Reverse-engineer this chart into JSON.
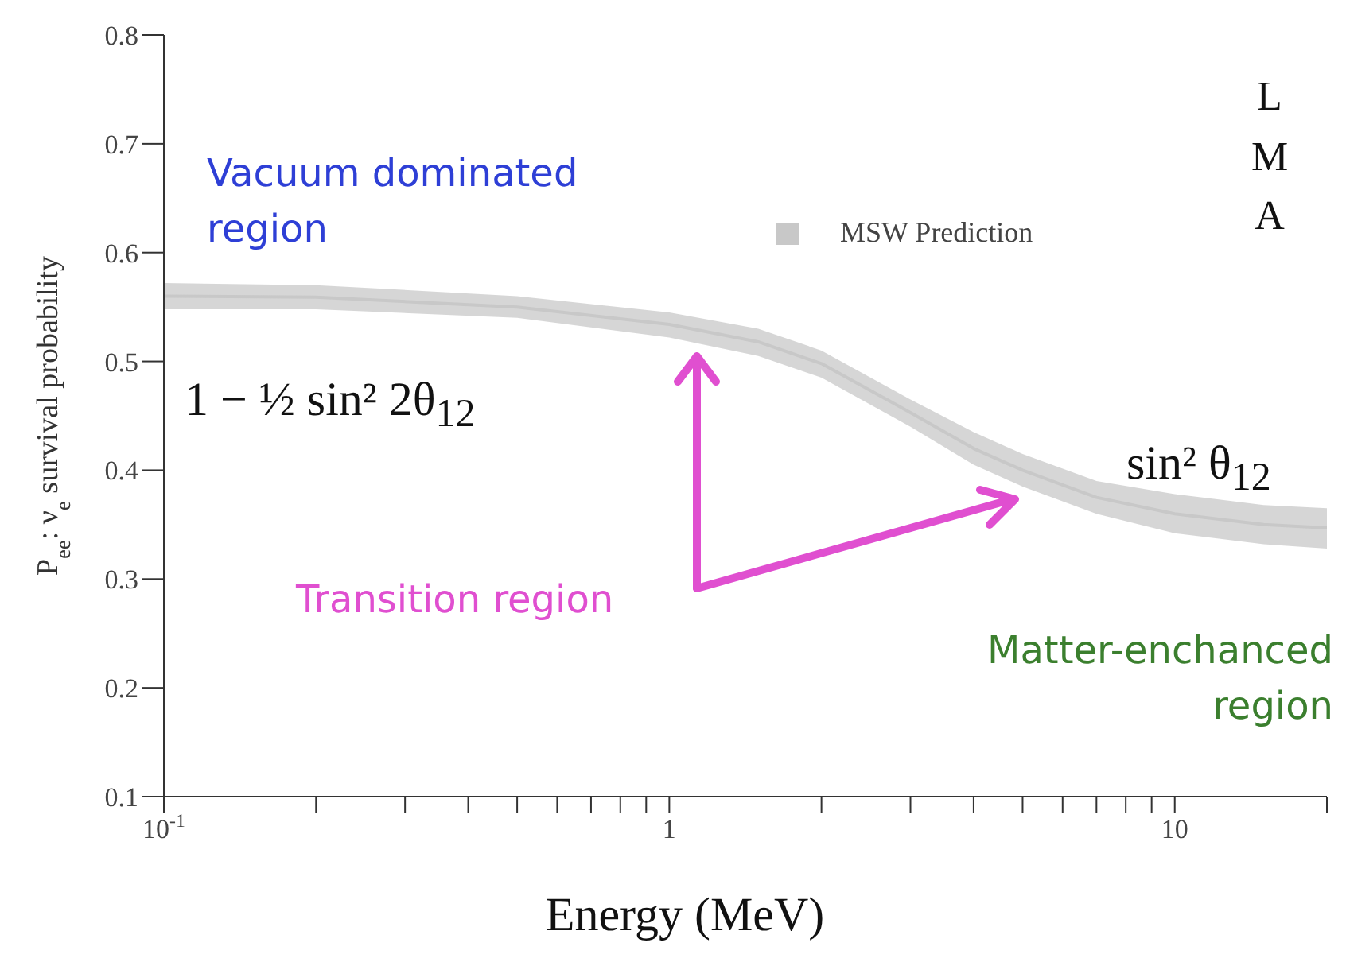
{
  "chart_data": {
    "type": "line",
    "xlabel": "Energy (MeV)",
    "ylabel": "P$_{ee}$:  ν$_{e}$ survival probability",
    "x": [
      0.1,
      0.2,
      0.5,
      1,
      1.5,
      2,
      3,
      4,
      5,
      7,
      10,
      15,
      20
    ],
    "series": [
      {
        "name": "MSW Prediction",
        "color": "#c8c8c8",
        "values": [
          0.56,
          0.559,
          0.55,
          0.534,
          0.518,
          0.498,
          0.453,
          0.42,
          0.4,
          0.375,
          0.36,
          0.35,
          0.347
        ],
        "lower": [
          0.548,
          0.548,
          0.54,
          0.522,
          0.505,
          0.485,
          0.44,
          0.405,
          0.385,
          0.36,
          0.342,
          0.332,
          0.328
        ],
        "upper": [
          0.572,
          0.57,
          0.56,
          0.545,
          0.53,
          0.51,
          0.465,
          0.435,
          0.415,
          0.39,
          0.378,
          0.368,
          0.365
        ]
      }
    ],
    "log": "x",
    "xlim": [
      0.1,
      20
    ],
    "xticks": [
      {
        "value": 0.1,
        "label": "10$^{-1}$"
      },
      {
        "value": 0.2,
        "label": null
      },
      {
        "value": 0.3,
        "label": null
      },
      {
        "value": 0.4,
        "label": null
      },
      {
        "value": 0.5,
        "label": null
      },
      {
        "value": 0.6,
        "label": null
      },
      {
        "value": 0.7,
        "label": null
      },
      {
        "value": 0.8,
        "label": null
      },
      {
        "value": 0.9,
        "label": null
      },
      1,
      {
        "value": 2,
        "label": null
      },
      {
        "value": 3,
        "label": null
      },
      {
        "value": 4,
        "label": null
      },
      {
        "value": 5,
        "label": null
      },
      {
        "value": 6,
        "label": null
      },
      {
        "value": 7,
        "label": null
      },
      {
        "value": 8,
        "label": null
      },
      {
        "value": 9,
        "label": null
      },
      10,
      {
        "value": 20,
        "label": null
      }
    ],
    "ylim": [
      0.1,
      0.8
    ],
    "yticks": [
      0.1,
      0.2,
      0.3,
      0.4,
      0.5,
      0.6,
      0.7,
      0.8
    ],
    "grid": false,
    "legend": "top right",
    "marker": "none",
    "annotations": [
      "Vacuum dominated region",
      "1 − ½ sin² 2θ$_{12}$",
      "Transition region",
      "sin² θ$_{12}$",
      "Matter-enchanced region",
      "L M A"
    ]
  }
}
